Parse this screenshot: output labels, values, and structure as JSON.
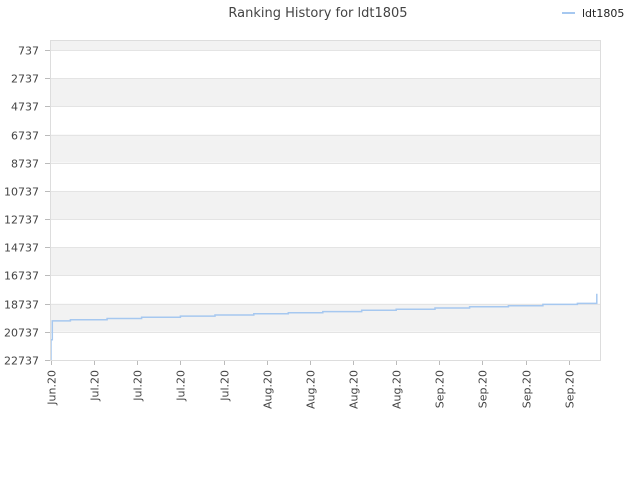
{
  "chart_data": {
    "type": "line",
    "title": "Ranking History for ldt1805",
    "xlabel": "",
    "ylabel": "",
    "y_inverted": true,
    "ylim": [
      737,
      22737
    ],
    "y_ticks": [
      737,
      2737,
      4737,
      6737,
      8737,
      10737,
      12737,
      14737,
      16737,
      18737,
      20737,
      22737
    ],
    "x_ticks": [
      "Jun.20",
      "Jul.20",
      "Jul.20",
      "Jul.20",
      "Jul.20",
      "Aug.20",
      "Aug.20",
      "Aug.20",
      "Aug.20",
      "Sep.20",
      "Sep.20",
      "Sep.20",
      "Sep.20"
    ],
    "x_range_days": [
      0,
      127
    ],
    "x_tick_days": [
      0,
      10,
      20,
      30,
      40,
      50,
      60,
      70,
      80,
      90,
      100,
      110,
      120
    ],
    "grid": true,
    "legend_position": "top-right",
    "series": [
      {
        "name": "ldt1805",
        "color": "#a6c8f0",
        "points": [
          [
            0,
            22737
          ],
          [
            0,
            21300
          ],
          [
            0.3,
            21300
          ],
          [
            0.3,
            19960
          ],
          [
            4.5,
            19960
          ],
          [
            4.5,
            19880
          ],
          [
            13,
            19880
          ],
          [
            13,
            19790
          ],
          [
            21,
            19790
          ],
          [
            21,
            19710
          ],
          [
            30,
            19710
          ],
          [
            30,
            19620
          ],
          [
            38,
            19620
          ],
          [
            38,
            19540
          ],
          [
            47,
            19540
          ],
          [
            47,
            19460
          ],
          [
            55,
            19460
          ],
          [
            55,
            19380
          ],
          [
            63,
            19380
          ],
          [
            63,
            19300
          ],
          [
            72,
            19300
          ],
          [
            72,
            19210
          ],
          [
            80,
            19210
          ],
          [
            80,
            19130
          ],
          [
            89,
            19130
          ],
          [
            89,
            19050
          ],
          [
            97,
            19050
          ],
          [
            97,
            18960
          ],
          [
            106,
            18960
          ],
          [
            106,
            18880
          ],
          [
            114,
            18880
          ],
          [
            114,
            18790
          ],
          [
            122,
            18790
          ],
          [
            122,
            18720
          ],
          [
            126.5,
            18720
          ],
          [
            126.5,
            18030
          ]
        ]
      }
    ]
  }
}
